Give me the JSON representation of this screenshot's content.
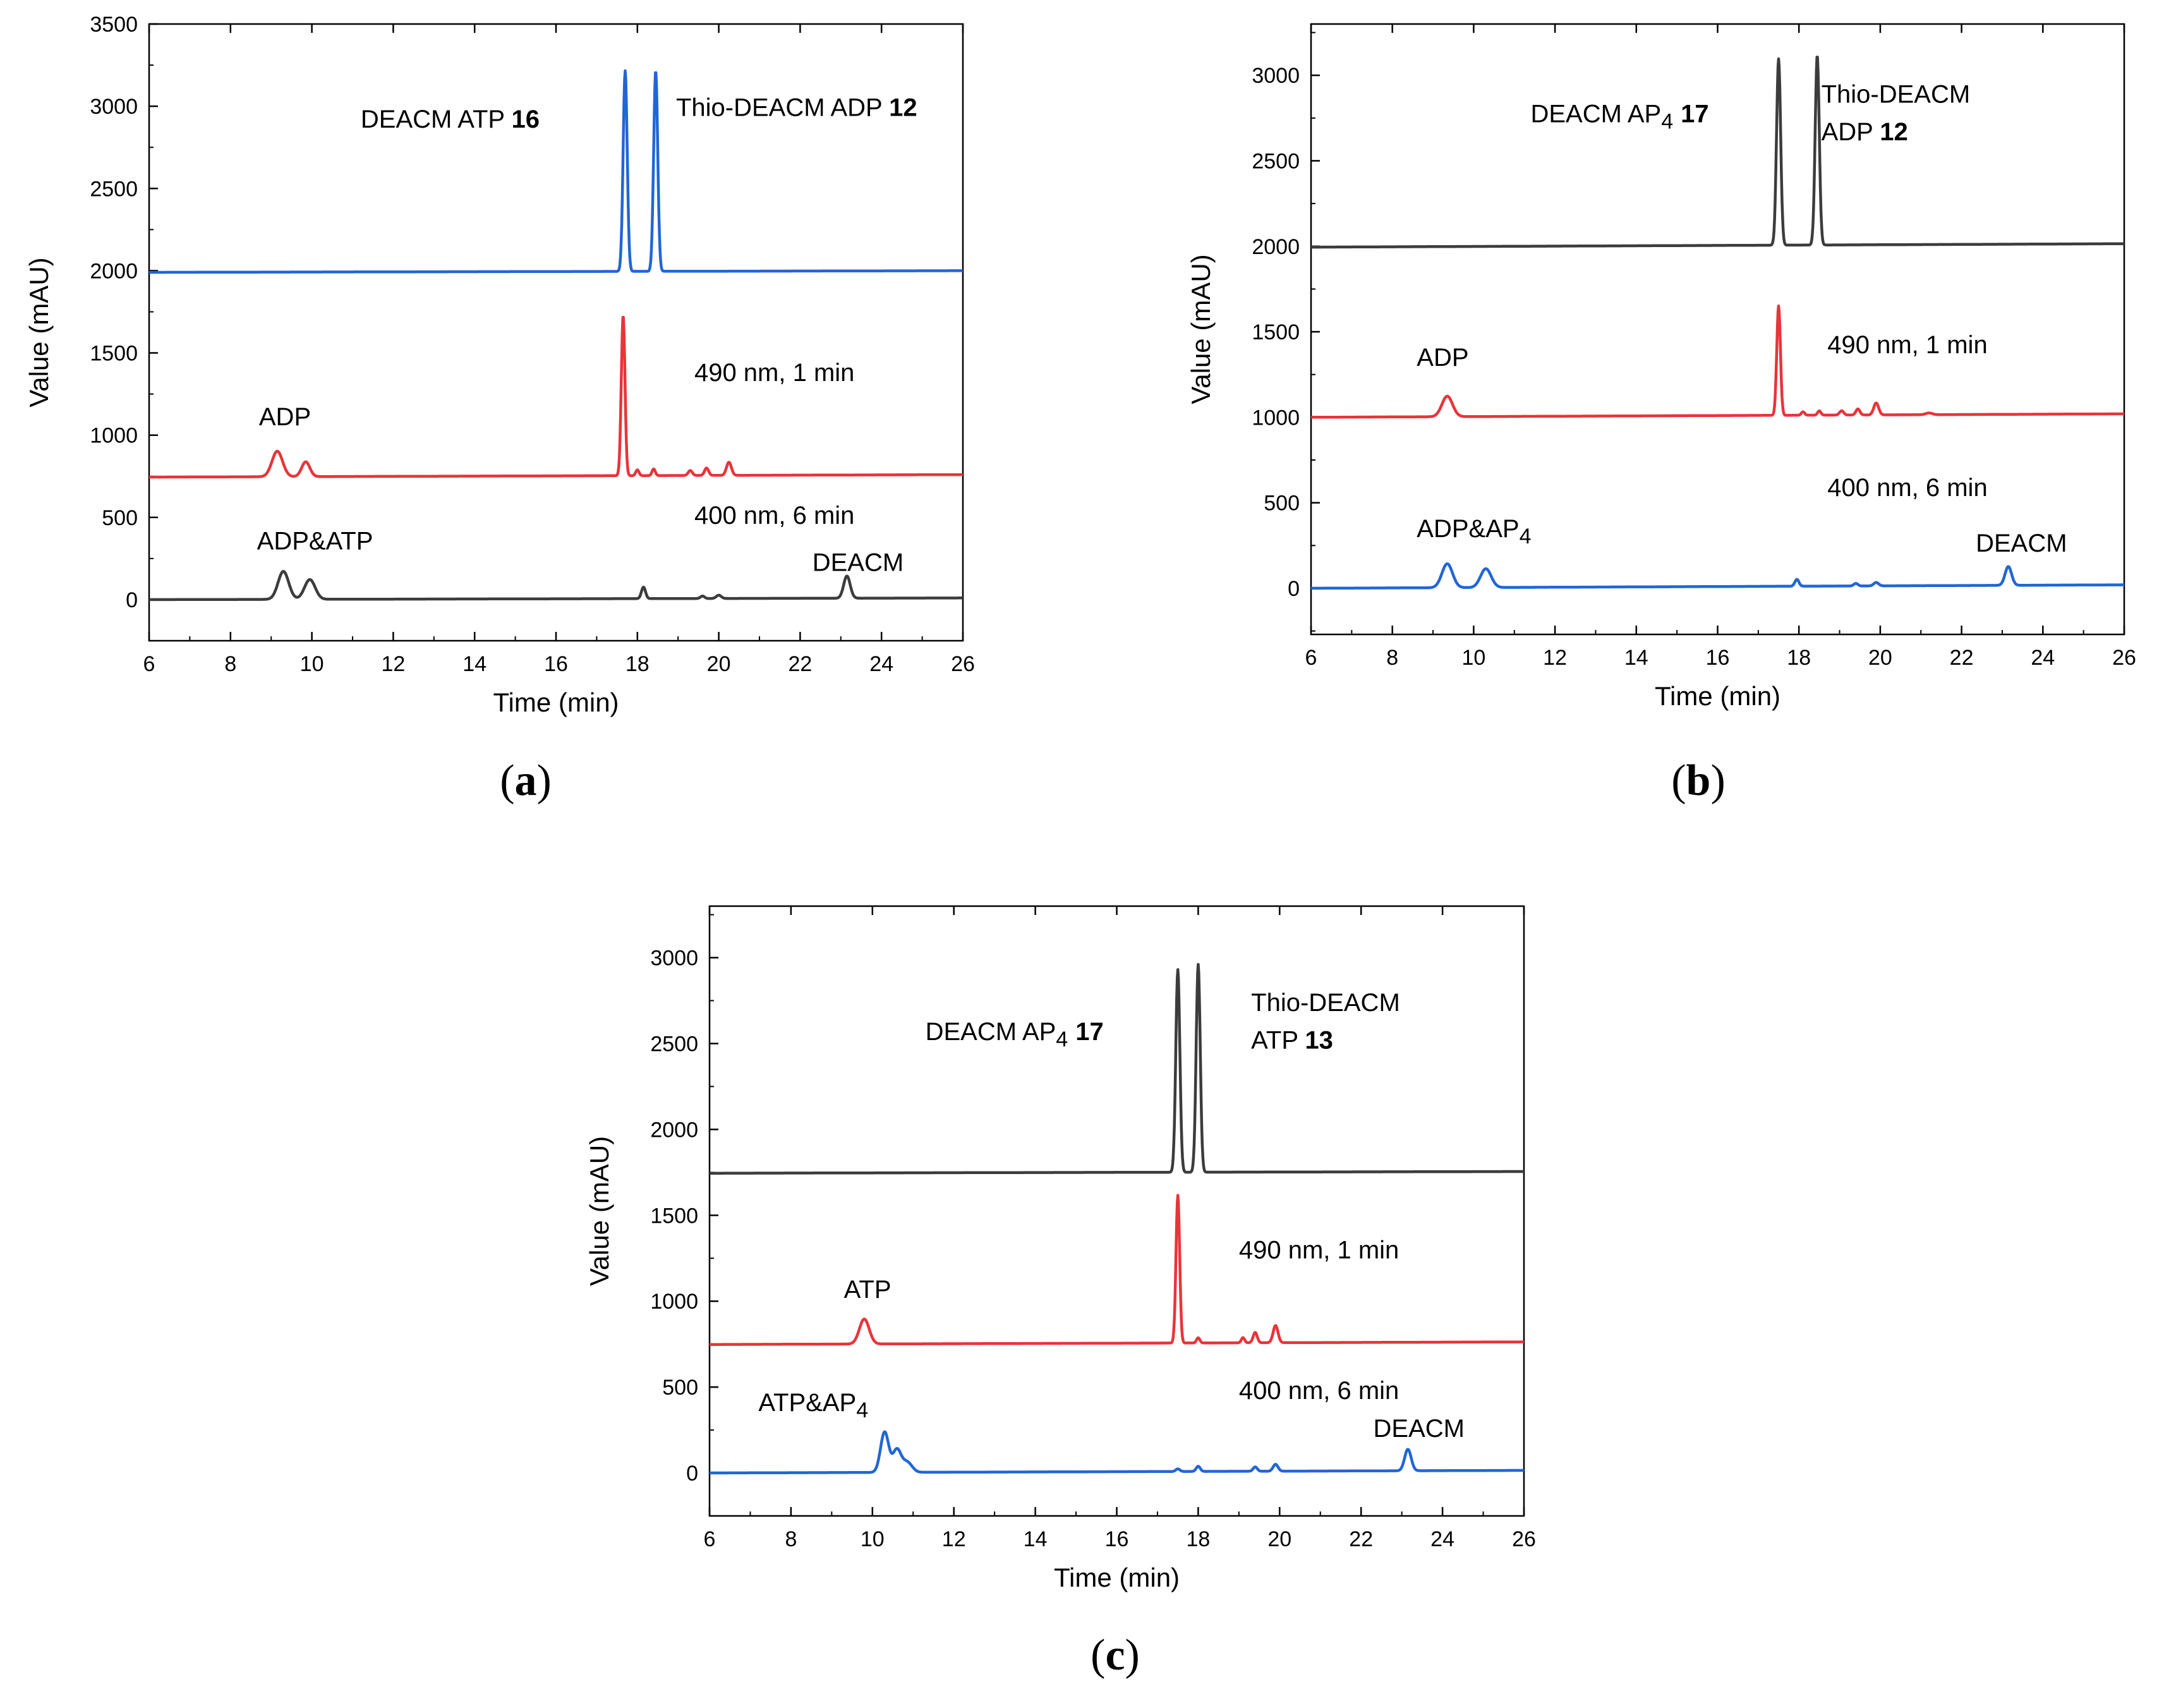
{
  "colors": {
    "blue": "#2166d6",
    "red": "#e8343a",
    "dark": "#3c3c3c",
    "axis": "#000000"
  },
  "chart_data": [
    {
      "id": "a",
      "type": "line",
      "panel_label": "a",
      "xlabel": "Time (min)",
      "ylabel": "Value (mAU)",
      "xlim": [
        6,
        26
      ],
      "ylim": [
        -250,
        3500
      ],
      "xticks": [
        6,
        8,
        10,
        12,
        14,
        16,
        18,
        20,
        22,
        24,
        26
      ],
      "yticks": [
        0,
        500,
        1000,
        1500,
        2000,
        2500,
        3000,
        3500
      ],
      "series": [
        {
          "name": "DEACM ATP 16 / Thio-DEACM ADP 12",
          "color": "#2166d6",
          "baseline": 1990,
          "drift": 10,
          "peaks": [
            [
              17.7,
              1220,
              0.05
            ],
            [
              18.45,
              1220,
              0.05
            ]
          ]
        },
        {
          "name": "490 nm, 1 min",
          "color": "#e8343a",
          "baseline": 745,
          "drift": 15,
          "peaks": [
            [
              9.15,
              155,
              0.13
            ],
            [
              9.85,
              90,
              0.1
            ],
            [
              17.65,
              975,
              0.045
            ],
            [
              18.0,
              35,
              0.04
            ],
            [
              18.4,
              40,
              0.04
            ],
            [
              19.3,
              30,
              0.05
            ],
            [
              19.7,
              45,
              0.05
            ],
            [
              20.25,
              80,
              0.06
            ]
          ]
        },
        {
          "name": "400 nm, 6 min",
          "color": "#3c3c3c",
          "baseline": 0,
          "drift": 10,
          "peaks": [
            [
              9.3,
              170,
              0.13
            ],
            [
              9.95,
              120,
              0.13
            ],
            [
              18.15,
              70,
              0.05
            ],
            [
              19.6,
              15,
              0.05
            ],
            [
              20.0,
              20,
              0.06
            ],
            [
              23.15,
              135,
              0.08
            ]
          ]
        }
      ],
      "annotations": [
        {
          "text": "DEACM ATP ",
          "bold": "16",
          "x": 11.2,
          "y": 2870
        },
        {
          "text": "Thio-DEACM ADP ",
          "bold": "12",
          "x": 18.95,
          "y": 2940
        },
        {
          "text": "490 nm, 1 min",
          "x": 19.4,
          "y": 1330
        },
        {
          "text": "ADP",
          "x": 8.7,
          "y": 1060
        },
        {
          "text": "400 nm, 6 min",
          "x": 19.4,
          "y": 460
        },
        {
          "text": "ADP&ATP",
          "x": 8.65,
          "y": 305
        },
        {
          "text": "DEACM",
          "x": 22.3,
          "y": 175
        }
      ]
    },
    {
      "id": "b",
      "type": "line",
      "panel_label": "b",
      "xlabel": "Time (min)",
      "ylabel": "Value (mAU)",
      "xlim": [
        6,
        26
      ],
      "ylim": [
        -270,
        3300
      ],
      "xticks": [
        6,
        8,
        10,
        12,
        14,
        16,
        18,
        20,
        22,
        24,
        26
      ],
      "yticks": [
        0,
        500,
        1000,
        1500,
        2000,
        2500,
        3000
      ],
      "series": [
        {
          "name": "DEACM AP4 17 / Thio-DEACM ADP 12",
          "color": "#3c3c3c",
          "baseline": 1995,
          "drift": 20,
          "peaks": [
            [
              17.5,
              1090,
              0.05
            ],
            [
              18.45,
              1110,
              0.05
            ]
          ]
        },
        {
          "name": "490 nm, 1 min",
          "color": "#e8343a",
          "baseline": 1000,
          "drift": 20,
          "peaks": [
            [
              9.35,
              120,
              0.13
            ],
            [
              17.5,
              640,
              0.045
            ],
            [
              18.1,
              20,
              0.04
            ],
            [
              18.5,
              25,
              0.04
            ],
            [
              19.05,
              25,
              0.05
            ],
            [
              19.45,
              35,
              0.05
            ],
            [
              19.9,
              70,
              0.06
            ],
            [
              21.2,
              10,
              0.08
            ]
          ]
        },
        {
          "name": "400 nm, 6 min",
          "color": "#2166d6",
          "baseline": 0,
          "drift": 20,
          "peaks": [
            [
              9.35,
              140,
              0.13
            ],
            [
              10.3,
              110,
              0.13
            ],
            [
              17.95,
              40,
              0.05
            ],
            [
              19.4,
              15,
              0.05
            ],
            [
              19.9,
              20,
              0.06
            ],
            [
              23.15,
              110,
              0.08
            ]
          ]
        }
      ],
      "annotations": [
        {
          "text": "DEACM AP",
          "sub": "4",
          "bold": "17",
          "x": 11.4,
          "y": 2725
        },
        {
          "text": "Thio-DEACM",
          "x": 18.55,
          "y": 2840
        },
        {
          "text": "ADP ",
          "bold": "12",
          "x": 18.55,
          "y": 2620
        },
        {
          "text": "490 nm, 1 min",
          "x": 18.7,
          "y": 1375
        },
        {
          "text": "ADP",
          "x": 8.6,
          "y": 1300
        },
        {
          "text": "400 nm, 6 min",
          "x": 18.7,
          "y": 540
        },
        {
          "text": "ADP&AP",
          "sub": "4",
          "x": 8.6,
          "y": 300
        },
        {
          "text": "DEACM",
          "x": 22.35,
          "y": 215
        }
      ]
    },
    {
      "id": "c",
      "type": "line",
      "panel_label": "c",
      "xlabel": "Time (min)",
      "ylabel": "Value (mAU)",
      "xlim": [
        6,
        26
      ],
      "ylim": [
        -250,
        3300
      ],
      "xticks": [
        6,
        8,
        10,
        12,
        14,
        16,
        18,
        20,
        22,
        24,
        26
      ],
      "yticks": [
        0,
        500,
        1000,
        1500,
        2000,
        2500,
        3000
      ],
      "series": [
        {
          "name": "DEACM AP4 17 / Thio-DEACM ATP 13",
          "color": "#3c3c3c",
          "baseline": 1745,
          "drift": 10,
          "peaks": [
            [
              17.5,
              1180,
              0.05
            ],
            [
              18.0,
              1210,
              0.05
            ]
          ]
        },
        {
          "name": "490 nm, 1 min",
          "color": "#e8343a",
          "baseline": 748,
          "drift": 15,
          "peaks": [
            [
              9.8,
              145,
              0.12
            ],
            [
              17.5,
              860,
              0.045
            ],
            [
              18.0,
              30,
              0.04
            ],
            [
              19.1,
              30,
              0.04
            ],
            [
              19.4,
              60,
              0.05
            ],
            [
              19.9,
              100,
              0.06
            ]
          ]
        },
        {
          "name": "400 nm, 6 min",
          "color": "#2166d6",
          "baseline": 0,
          "drift": 15,
          "peaks": [
            [
              10.3,
              235,
              0.1
            ],
            [
              10.6,
              130,
              0.1
            ],
            [
              10.85,
              60,
              0.12
            ],
            [
              17.5,
              15,
              0.05
            ],
            [
              18.0,
              30,
              0.05
            ],
            [
              19.4,
              25,
              0.05
            ],
            [
              19.9,
              40,
              0.06
            ],
            [
              23.15,
              125,
              0.08
            ]
          ]
        }
      ],
      "annotations": [
        {
          "text": "DEACM AP",
          "sub": "4",
          "bold": "17",
          "x": 11.3,
          "y": 2520
        },
        {
          "text": "Thio-DEACM",
          "x": 19.3,
          "y": 2690
        },
        {
          "text": "ATP ",
          "bold": "13",
          "x": 19.3,
          "y": 2470
        },
        {
          "text": "490 nm, 1 min",
          "x": 19.0,
          "y": 1250
        },
        {
          "text": "ATP",
          "x": 9.3,
          "y": 1020
        },
        {
          "text": "400 nm, 6 min",
          "x": 19.0,
          "y": 430
        },
        {
          "text": "ATP&AP",
          "sub": "4",
          "x": 7.2,
          "y": 360
        },
        {
          "text": "DEACM",
          "x": 22.3,
          "y": 210
        }
      ]
    }
  ]
}
